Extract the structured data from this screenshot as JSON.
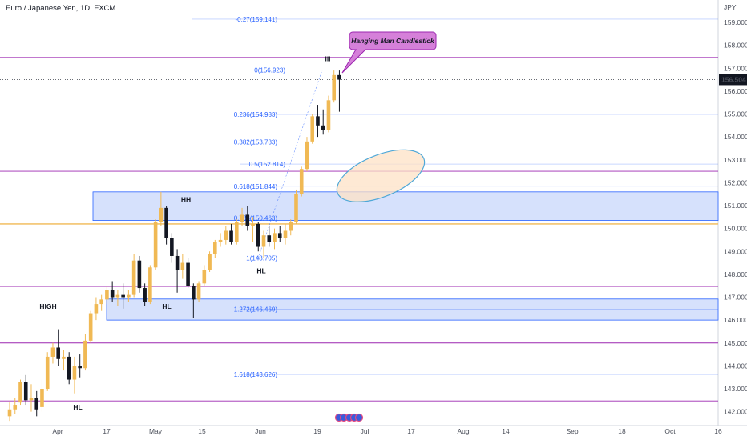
{
  "header": {
    "title": "Euro / Japanese Yen, 1D, FXCM",
    "currency": "JPY"
  },
  "price_scale": {
    "ticks": [
      "159.000",
      "158.000",
      "157.000",
      "156.000",
      "155.000",
      "154.000",
      "153.000",
      "152.000",
      "151.000",
      "150.000",
      "149.000",
      "148.000",
      "147.000",
      "146.000",
      "145.000",
      "144.000",
      "143.000",
      "142.000"
    ],
    "last_price": "156.504"
  },
  "time_scale": {
    "ticks": [
      "Apr",
      "17",
      "May",
      "15",
      "Jun",
      "19",
      "Jul",
      "17",
      "Aug",
      "14",
      "Sep",
      "18",
      "Oct",
      "16"
    ]
  },
  "callout": {
    "text": "Hanging Man Candlestick"
  },
  "fib_labels": [
    {
      "pct": "-0.27",
      "price": "159.141"
    },
    {
      "pct": "0",
      "price": "156.923"
    },
    {
      "pct": "0.236",
      "price": "154.983"
    },
    {
      "pct": "0.382",
      "price": "153.783"
    },
    {
      "pct": "0.5",
      "price": "152.814"
    },
    {
      "pct": "0.618",
      "price": "151.844"
    },
    {
      "pct": "0.786",
      "price": "150.463"
    },
    {
      "pct": "1",
      "price": "148.705"
    },
    {
      "pct": "1.272",
      "price": "146.469"
    },
    {
      "pct": "1.618",
      "price": "143.626"
    }
  ],
  "annotations": [
    "HIGH",
    "HL",
    "HH",
    "HL",
    "HL",
    "III"
  ],
  "colors": {
    "up": "#f0b954",
    "down": "#131722",
    "hline": "#9c27b0",
    "hline_gold": "#f0b954",
    "fib": "#2962ff",
    "zone_fill": "#cfdcfb",
    "zone_border": "#2962ff",
    "callout": "#d580d9",
    "ellipse_fill": "#fde1c6",
    "ellipse_stroke": "#4fa8d8"
  },
  "chart_data": {
    "type": "candlestick",
    "title": "Euro / Japanese Yen, 1D, FXCM",
    "ylabel": "JPY",
    "ylim": [
      141.6,
      159.7
    ],
    "horizontal_levels": [
      157.47,
      155.0,
      152.5,
      150.2,
      147.47,
      145.0,
      142.47
    ],
    "support_resistance_zones": [
      [
        150.35,
        151.6
      ],
      [
        146.0,
        146.92
      ]
    ],
    "series": [
      {
        "o": 141.8,
        "h": 142.4,
        "l": 141.6,
        "c": 142.1
      },
      {
        "o": 142.1,
        "h": 142.6,
        "l": 141.9,
        "c": 142.3
      },
      {
        "o": 142.4,
        "h": 143.4,
        "l": 142.3,
        "c": 143.3
      },
      {
        "o": 143.3,
        "h": 143.6,
        "l": 142.3,
        "c": 142.5
      },
      {
        "o": 142.5,
        "h": 143.2,
        "l": 142.0,
        "c": 142.6
      },
      {
        "o": 142.6,
        "h": 142.9,
        "l": 141.8,
        "c": 142.1
      },
      {
        "o": 142.2,
        "h": 143.4,
        "l": 142.0,
        "c": 143.0
      },
      {
        "o": 143.0,
        "h": 144.6,
        "l": 142.9,
        "c": 144.4
      },
      {
        "o": 144.4,
        "h": 145.0,
        "l": 144.1,
        "c": 144.8
      },
      {
        "o": 144.8,
        "h": 145.6,
        "l": 144.0,
        "c": 144.3
      },
      {
        "o": 144.3,
        "h": 144.7,
        "l": 143.8,
        "c": 144.4
      },
      {
        "o": 144.4,
        "h": 144.6,
        "l": 143.2,
        "c": 143.4
      },
      {
        "o": 143.4,
        "h": 144.4,
        "l": 142.8,
        "c": 144.0
      },
      {
        "o": 144.0,
        "h": 144.5,
        "l": 143.5,
        "c": 143.9
      },
      {
        "o": 143.9,
        "h": 145.4,
        "l": 143.8,
        "c": 145.1
      },
      {
        "o": 145.1,
        "h": 146.4,
        "l": 145.0,
        "c": 146.3
      },
      {
        "o": 146.3,
        "h": 147.0,
        "l": 146.0,
        "c": 146.7
      },
      {
        "o": 146.7,
        "h": 147.1,
        "l": 146.4,
        "c": 146.9
      },
      {
        "o": 146.9,
        "h": 147.5,
        "l": 146.7,
        "c": 147.3
      },
      {
        "o": 147.3,
        "h": 147.7,
        "l": 146.8,
        "c": 147.0
      },
      {
        "o": 147.0,
        "h": 147.3,
        "l": 146.6,
        "c": 147.1
      },
      {
        "o": 147.1,
        "h": 147.6,
        "l": 146.5,
        "c": 147.0
      },
      {
        "o": 147.0,
        "h": 147.3,
        "l": 146.8,
        "c": 147.1
      },
      {
        "o": 147.1,
        "h": 148.9,
        "l": 147.0,
        "c": 148.6
      },
      {
        "o": 148.6,
        "h": 148.8,
        "l": 147.2,
        "c": 147.4
      },
      {
        "o": 147.4,
        "h": 147.6,
        "l": 146.6,
        "c": 146.8
      },
      {
        "o": 146.8,
        "h": 148.4,
        "l": 146.7,
        "c": 148.3
      },
      {
        "o": 148.3,
        "h": 150.4,
        "l": 148.2,
        "c": 150.3
      },
      {
        "o": 150.3,
        "h": 151.6,
        "l": 150.1,
        "c": 150.9
      },
      {
        "o": 150.9,
        "h": 151.0,
        "l": 149.3,
        "c": 149.6
      },
      {
        "o": 149.6,
        "h": 149.8,
        "l": 148.5,
        "c": 148.8
      },
      {
        "o": 148.8,
        "h": 149.1,
        "l": 147.2,
        "c": 148.2
      },
      {
        "o": 148.2,
        "h": 148.9,
        "l": 147.8,
        "c": 148.5
      },
      {
        "o": 148.5,
        "h": 148.7,
        "l": 147.4,
        "c": 147.5
      },
      {
        "o": 147.5,
        "h": 147.6,
        "l": 146.1,
        "c": 146.9
      },
      {
        "o": 146.9,
        "h": 147.7,
        "l": 146.8,
        "c": 147.6
      },
      {
        "o": 147.6,
        "h": 148.4,
        "l": 147.5,
        "c": 148.2
      },
      {
        "o": 148.2,
        "h": 149.0,
        "l": 148.1,
        "c": 148.9
      },
      {
        "o": 148.9,
        "h": 149.5,
        "l": 148.7,
        "c": 149.4
      },
      {
        "o": 149.4,
        "h": 149.8,
        "l": 149.2,
        "c": 149.5
      },
      {
        "o": 149.5,
        "h": 150.1,
        "l": 149.3,
        "c": 149.9
      },
      {
        "o": 149.9,
        "h": 150.2,
        "l": 149.3,
        "c": 149.4
      },
      {
        "o": 149.4,
        "h": 150.4,
        "l": 149.3,
        "c": 150.3
      },
      {
        "o": 150.3,
        "h": 150.9,
        "l": 150.1,
        "c": 150.6
      },
      {
        "o": 150.6,
        "h": 151.0,
        "l": 149.9,
        "c": 150.1
      },
      {
        "o": 150.1,
        "h": 150.5,
        "l": 149.4,
        "c": 150.2
      },
      {
        "o": 150.2,
        "h": 150.3,
        "l": 149.0,
        "c": 149.2
      },
      {
        "o": 149.2,
        "h": 149.9,
        "l": 148.7,
        "c": 149.7
      },
      {
        "o": 149.7,
        "h": 150.1,
        "l": 149.2,
        "c": 149.4
      },
      {
        "o": 149.4,
        "h": 150.0,
        "l": 149.1,
        "c": 149.8
      },
      {
        "o": 149.8,
        "h": 150.1,
        "l": 149.4,
        "c": 149.6
      },
      {
        "o": 149.6,
        "h": 150.2,
        "l": 149.3,
        "c": 149.9
      },
      {
        "o": 149.9,
        "h": 150.4,
        "l": 149.7,
        "c": 150.3
      },
      {
        "o": 150.3,
        "h": 151.7,
        "l": 150.2,
        "c": 151.5
      },
      {
        "o": 151.5,
        "h": 152.7,
        "l": 151.4,
        "c": 152.6
      },
      {
        "o": 152.6,
        "h": 154.0,
        "l": 152.5,
        "c": 153.8
      },
      {
        "o": 153.8,
        "h": 155.0,
        "l": 153.7,
        "c": 154.9
      },
      {
        "o": 154.9,
        "h": 155.4,
        "l": 154.0,
        "c": 154.5
      },
      {
        "o": 154.5,
        "h": 155.2,
        "l": 154.1,
        "c": 154.3
      },
      {
        "o": 154.3,
        "h": 155.8,
        "l": 154.2,
        "c": 155.6
      },
      {
        "o": 155.6,
        "h": 156.9,
        "l": 155.5,
        "c": 156.7
      },
      {
        "o": 156.7,
        "h": 156.9,
        "l": 155.1,
        "c": 156.5
      }
    ]
  }
}
